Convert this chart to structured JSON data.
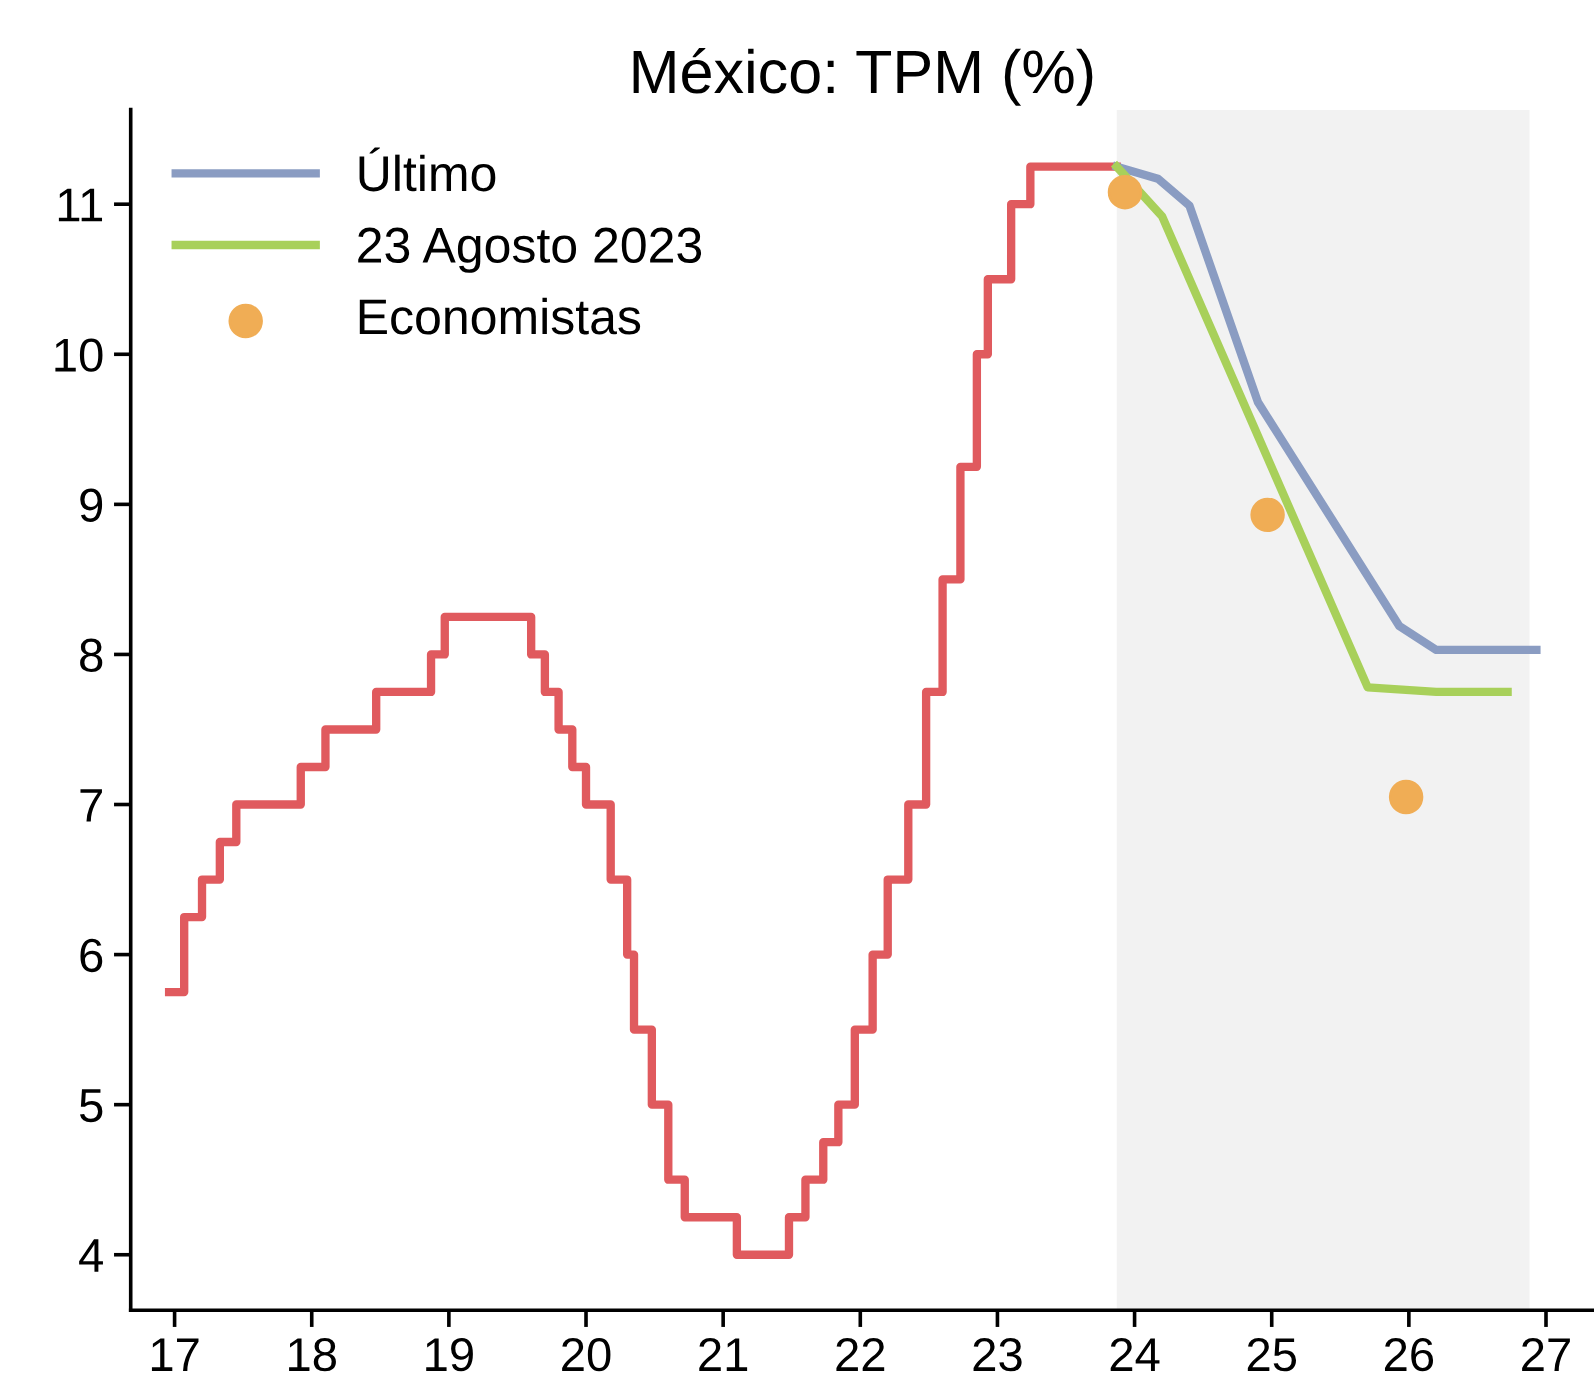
{
  "chart_data": {
    "type": "line",
    "title": "México: TPM (%)",
    "xlim": [
      16.68,
      27.35
    ],
    "xticks": [
      17,
      18,
      19,
      20,
      21,
      22,
      23,
      24,
      25,
      26,
      27
    ],
    "ylim": [
      3.63,
      11.63
    ],
    "yticks": [
      4,
      5,
      6,
      7,
      8,
      9,
      10,
      11
    ],
    "grid": false,
    "legend": "top left",
    "bands": [
      {
        "axis": "x",
        "from": 23.87,
        "to": 26.88,
        "color": "#f2f2f2"
      }
    ],
    "series": [
      {
        "type": "step",
        "color": "#e05a5e",
        "x": [
          16.96,
          17.07,
          17.2,
          17.33,
          17.45,
          17.92,
          18.1,
          18.47,
          18.87,
          18.97,
          19.6,
          19.7,
          19.8,
          19.9,
          20.0,
          20.18,
          20.3,
          20.35,
          20.48,
          20.6,
          20.72,
          21.1,
          21.48,
          21.6,
          21.73,
          21.84,
          21.96,
          22.09,
          22.2,
          22.35,
          22.48,
          22.6,
          22.73,
          22.85,
          22.93,
          23.1,
          23.24,
          23.87
        ],
        "values": [
          5.75,
          6.25,
          6.5,
          6.75,
          7.0,
          7.25,
          7.5,
          7.75,
          8.0,
          8.25,
          8.0,
          7.75,
          7.5,
          7.25,
          7.0,
          6.5,
          6.0,
          5.5,
          5.0,
          4.5,
          4.25,
          4.0,
          4.25,
          4.5,
          4.75,
          5.0,
          5.5,
          6.0,
          6.5,
          7.0,
          7.75,
          8.5,
          9.25,
          10.0,
          10.5,
          11.0,
          11.25,
          11.25
        ]
      },
      {
        "name": "Último",
        "color": "#8a9cc2",
        "x": [
          23.87,
          24.17,
          24.4,
          24.9,
          25.93,
          26.2,
          26.93
        ],
        "values": [
          11.25,
          11.17,
          10.99,
          9.68,
          8.19,
          8.03,
          8.03
        ]
      },
      {
        "name": "23 Agosto 2023",
        "color": "#a8d05a",
        "x": [
          23.87,
          24.2,
          25.7,
          26.2,
          26.72
        ],
        "values": [
          11.25,
          10.92,
          7.78,
          7.75,
          7.75
        ]
      },
      {
        "type": "scatter",
        "name": "Economistas",
        "color": "#f0ad55",
        "marker": "circle",
        "x": [
          23.93,
          24.97,
          25.98
        ],
        "values": [
          11.08,
          8.93,
          7.05
        ]
      }
    ]
  }
}
